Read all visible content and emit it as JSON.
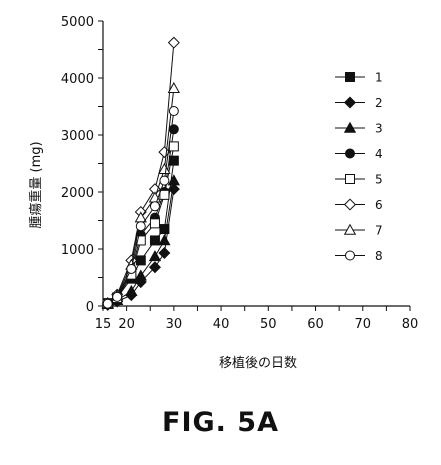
{
  "figure_label": "FIG. 5A",
  "chart_data": {
    "type": "line",
    "title": "",
    "xlabel": "移植後の日数",
    "ylabel": "腫瘍重量 (mg)",
    "xlim": [
      15,
      80
    ],
    "ylim": [
      0,
      5000
    ],
    "xticks": [
      15,
      20,
      25,
      30,
      35,
      40,
      45,
      50,
      55,
      60,
      65,
      70,
      75,
      80
    ],
    "xtick_labels": [
      "15",
      "",
      "20",
      "",
      "30",
      "",
      "40",
      "",
      "50",
      "",
      "60",
      "",
      "70",
      "",
      "80"
    ],
    "yticks": [
      0,
      500,
      1000,
      1500,
      2000,
      2500,
      3000,
      3500,
      4000,
      4500,
      5000
    ],
    "ytick_labels": [
      "0",
      "",
      "1000",
      "",
      "2000",
      "",
      "3000",
      "",
      "4000",
      "",
      "5000"
    ],
    "grid": false,
    "legend_position": "right",
    "series": [
      {
        "name": "1",
        "marker": "square-filled",
        "x": [
          16,
          18,
          21,
          23,
          26,
          28,
          30
        ],
        "y": [
          50,
          150,
          480,
          800,
          1150,
          1350,
          2550
        ]
      },
      {
        "name": "2",
        "marker": "diamond-filled",
        "x": [
          16,
          18,
          21,
          23,
          26,
          28,
          30
        ],
        "y": [
          20,
          80,
          190,
          420,
          680,
          930,
          2050
        ]
      },
      {
        "name": "3",
        "marker": "triangle-filled",
        "x": [
          16,
          18,
          21,
          23,
          26,
          28,
          30
        ],
        "y": [
          30,
          100,
          260,
          530,
          870,
          1150,
          2200
        ]
      },
      {
        "name": "4",
        "marker": "circle-filled",
        "x": [
          16,
          18,
          21,
          23,
          26,
          28,
          30
        ],
        "y": [
          40,
          150,
          600,
          1250,
          1550,
          2000,
          3100
        ]
      },
      {
        "name": "5",
        "marker": "square-open",
        "x": [
          16,
          18,
          21,
          23,
          26,
          28,
          30
        ],
        "y": [
          35,
          140,
          550,
          1150,
          1450,
          1950,
          2800
        ]
      },
      {
        "name": "6",
        "marker": "diamond-open",
        "x": [
          16,
          18,
          21,
          23,
          26,
          28,
          30
        ],
        "y": [
          50,
          200,
          800,
          1650,
          2050,
          2700,
          4620
        ]
      },
      {
        "name": "7",
        "marker": "triangle-open",
        "x": [
          16,
          18,
          21,
          23,
          26,
          28,
          30
        ],
        "y": [
          45,
          180,
          720,
          1550,
          1900,
          2400,
          3820
        ]
      },
      {
        "name": "8",
        "marker": "circle-open",
        "x": [
          16,
          18,
          21,
          23,
          26,
          28,
          30
        ],
        "y": [
          40,
          160,
          650,
          1400,
          1750,
          2200,
          3420
        ]
      }
    ]
  }
}
